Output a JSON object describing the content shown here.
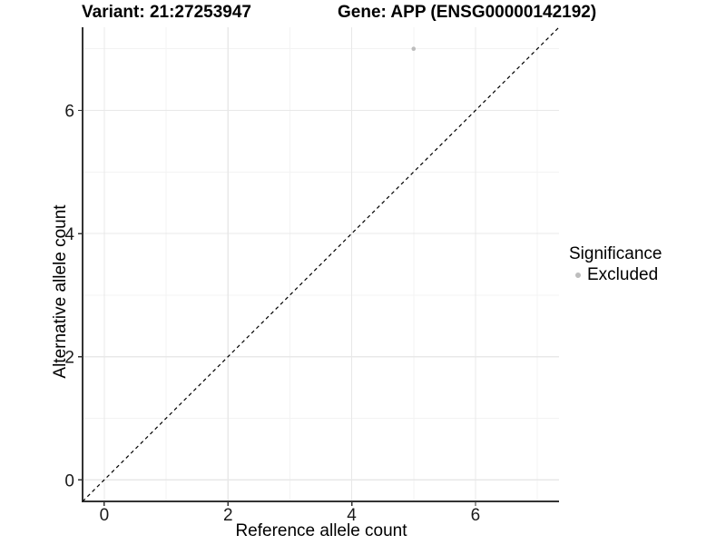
{
  "titles": {
    "variant": "Variant: 21:27253947",
    "gene": "Gene: APP (ENSG00000142192)"
  },
  "legend": {
    "title": "Significance",
    "position": "right",
    "items": [
      {
        "label": "Excluded",
        "marker": "circle-icon",
        "color": "#bdbdbd"
      }
    ]
  },
  "chart_data": {
    "type": "scatter",
    "title": "",
    "xlabel": "Reference allele count",
    "ylabel": "Alternative allele count",
    "xlim": [
      -0.35,
      7.35
    ],
    "ylim": [
      -0.35,
      7.35
    ],
    "x_ticks": [
      0,
      2,
      4,
      6
    ],
    "y_ticks": [
      0,
      2,
      4,
      6
    ],
    "x_minor_ticks": [
      1,
      3,
      5,
      7
    ],
    "y_minor_ticks": [
      1,
      3,
      5,
      7
    ],
    "grid": "major+minor",
    "legend_position": "right",
    "series": [
      {
        "name": "Excluded",
        "color": "#bdbdbd",
        "points": [
          [
            5,
            7
          ]
        ]
      }
    ],
    "reference_line": {
      "kind": "identity y=x",
      "from": [
        -0.35,
        -0.35
      ],
      "to": [
        7.35,
        7.35
      ],
      "style": "dashed",
      "color": "#000000"
    }
  },
  "colors": {
    "background": "#ffffff",
    "grid_major": "#e8e8e8",
    "grid_minor": "#f3f3f3",
    "axis_line": "#333333",
    "tick_label": "#1a1a1a",
    "point": "#bdbdbd"
  }
}
